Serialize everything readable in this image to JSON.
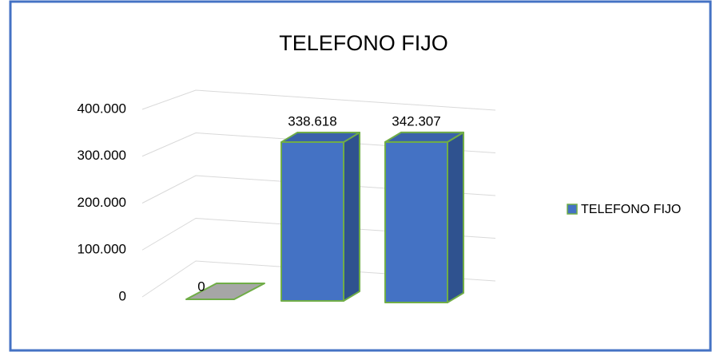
{
  "chart_data": {
    "type": "bar3d",
    "title": "TELEFONO FIJO",
    "categories": [
      null,
      null,
      null
    ],
    "series": [
      {
        "name": "TELEFONO FIJO",
        "color": "#4472c4",
        "values": [
          0,
          338618,
          342307
        ],
        "value_labels": [
          "0",
          "338.618",
          "342.307"
        ]
      }
    ],
    "ylim": [
      0,
      400000
    ],
    "yticks": [
      0,
      {
        "value": 100000,
        "label": "100.000"
      },
      {
        "value": 200000,
        "label": "200.000"
      },
      {
        "value": 300000,
        "label": "300.000"
      },
      {
        "value": 400000,
        "label": "400.000"
      }
    ],
    "grid": true,
    "legend": "right"
  }
}
